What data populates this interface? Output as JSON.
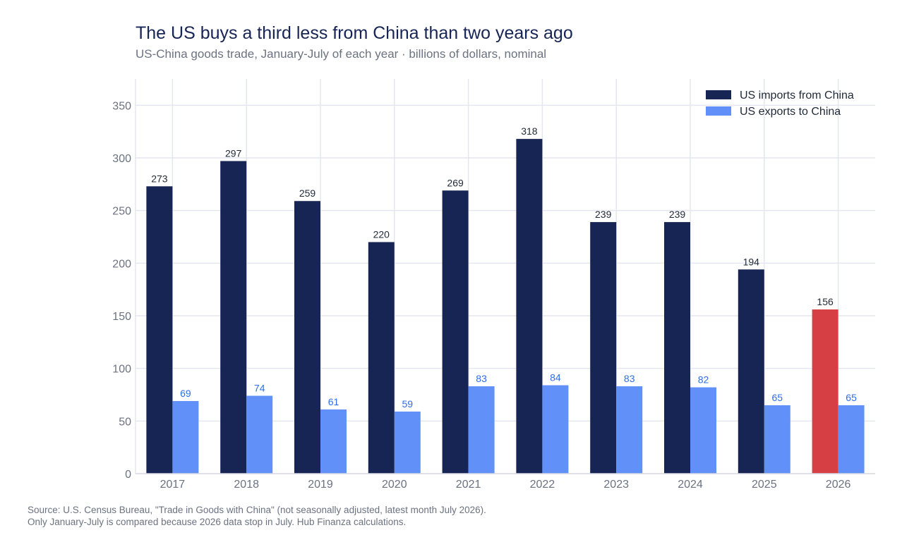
{
  "title": "The US buys a third less from China than two years ago",
  "subtitle": "US-China goods trade, January-July of each year · billions of dollars, nominal",
  "source_lines": [
    "Source: U.S. Census Bureau, \"Trade in Goods with China\" (not seasonally adjusted, latest month July 2026).",
    "Only January-July is compared because 2026 data stop in July. Hub Finanza calculations."
  ],
  "colors": {
    "imports": "#172554",
    "exports": "#6090f8",
    "highlight": "#d64045",
    "export_label": "#2f6ee8",
    "import_label": "#1f2937",
    "grid": "#e5e7ef"
  },
  "chart_data": {
    "type": "bar",
    "categories": [
      "2017",
      "2018",
      "2019",
      "2020",
      "2021",
      "2022",
      "2023",
      "2024",
      "2025",
      "2026"
    ],
    "series": [
      {
        "name": "US imports from China",
        "values": [
          273,
          297,
          259,
          220,
          269,
          318,
          239,
          239,
          194,
          156
        ],
        "highlight_index": 9
      },
      {
        "name": "US exports to China",
        "values": [
          69,
          74,
          61,
          59,
          83,
          84,
          83,
          82,
          65,
          65
        ]
      }
    ],
    "yticks": [
      0,
      50,
      100,
      150,
      200,
      250,
      300,
      350
    ],
    "ylim": [
      0,
      375
    ],
    "grid": true,
    "legend_position": "top-right"
  }
}
